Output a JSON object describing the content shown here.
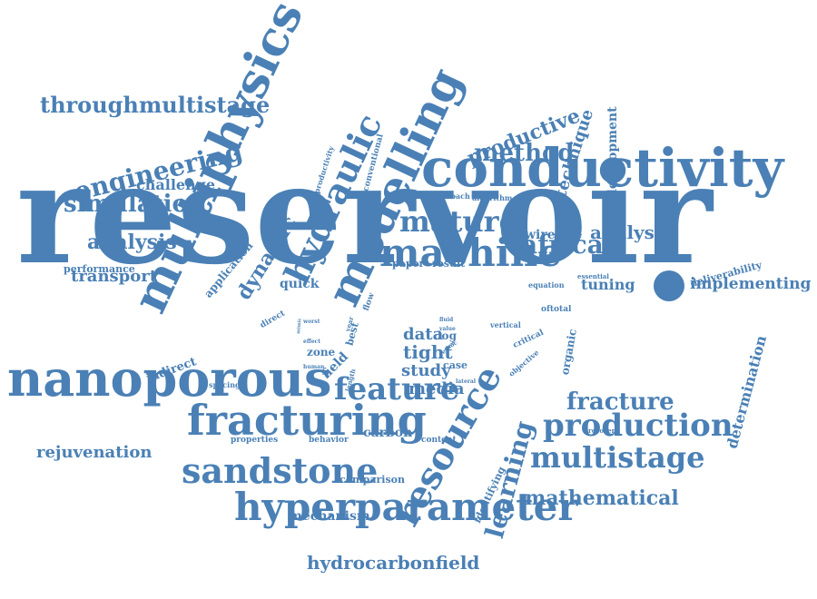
{
  "color": "#4a80b5",
  "words": [
    "reservoir",
    "conductivity",
    "nanoporous",
    "multiphysics",
    "modelling",
    "hyperparameter",
    "fracturing",
    "machine",
    "resource",
    "hydraulic",
    "sandstone",
    "production",
    "feature",
    "mature",
    "multistage",
    "learning",
    "engineering",
    "simulation",
    "method",
    "throughmultistage",
    "fracture",
    "african",
    "mathematical",
    "analysis",
    "productive",
    "hydrocarbonfield",
    "rejuvenation",
    "dynamic",
    "determination",
    "implementing",
    "technique",
    "analyser",
    "transport",
    "tight",
    "study",
    "data",
    "media",
    "development",
    "challenge",
    "mechanism",
    "tuning",
    "field",
    "wireline",
    "indirect",
    "quick",
    "carbon",
    "application",
    "log",
    "organic",
    "comparison",
    "performance",
    "paper",
    "result",
    "zone",
    "case",
    "deliverability",
    "identifying",
    "properties",
    "behavior",
    "content",
    "conventional",
    "productivity",
    "critical",
    "objective",
    "best",
    "direct",
    "flow",
    "approach",
    "algorithm",
    "equation",
    "essential",
    "oftotal",
    "vertical",
    "spacing",
    "recovery",
    "human",
    "effect",
    "worst",
    "year",
    "length",
    "fluid",
    "value",
    "lateral",
    "review",
    "proc",
    "mimic"
  ]
}
